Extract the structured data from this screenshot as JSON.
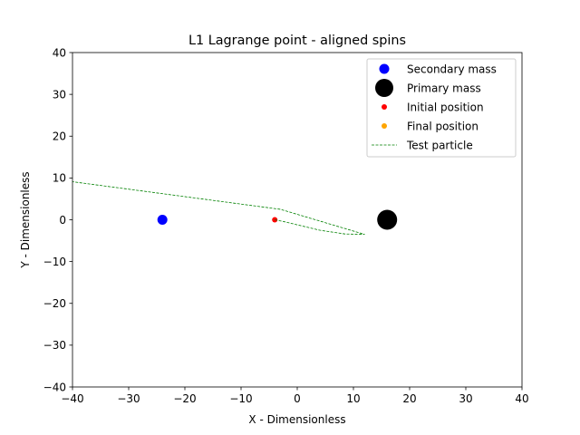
{
  "chart_data": {
    "type": "scatter",
    "title": "L1 Lagrange point - aligned spins",
    "xlabel": "X - Dimensionless",
    "ylabel": "Y - Dimensionless",
    "xlim": [
      -40,
      40
    ],
    "ylim": [
      -40,
      40
    ],
    "xticks": [
      -40,
      -30,
      -20,
      -10,
      0,
      10,
      20,
      30,
      40
    ],
    "yticks": [
      -40,
      -30,
      -20,
      -10,
      0,
      10,
      20,
      30,
      40
    ],
    "xtick_labels": [
      "−40",
      "−30",
      "−20",
      "−10",
      "0",
      "10",
      "20",
      "30",
      "40"
    ],
    "ytick_labels": [
      "−40",
      "−30",
      "−20",
      "−10",
      "0",
      "10",
      "20",
      "30",
      "40"
    ],
    "grid": false,
    "legend_position": "top-right",
    "series": [
      {
        "name": "Secondary mass",
        "kind": "point",
        "color": "#0000ff",
        "x": [
          -24
        ],
        "y": [
          0
        ]
      },
      {
        "name": "Primary mass",
        "kind": "point",
        "color": "#000000",
        "x": [
          16
        ],
        "y": [
          0
        ]
      },
      {
        "name": "Initial position",
        "kind": "point",
        "color": "#ff0000",
        "x": [
          -4
        ],
        "y": [
          0
        ]
      },
      {
        "name": "Final position",
        "kind": "point",
        "color": "#ffa500",
        "x": [],
        "y": []
      },
      {
        "name": "Test particle",
        "kind": "line",
        "color": "#008000",
        "x": [
          -4,
          -2.5,
          4,
          8.5,
          12,
          -3,
          -40
        ],
        "y": [
          0,
          -0.4,
          -2.5,
          -3.4,
          -3.5,
          2.5,
          9.1
        ]
      }
    ]
  }
}
